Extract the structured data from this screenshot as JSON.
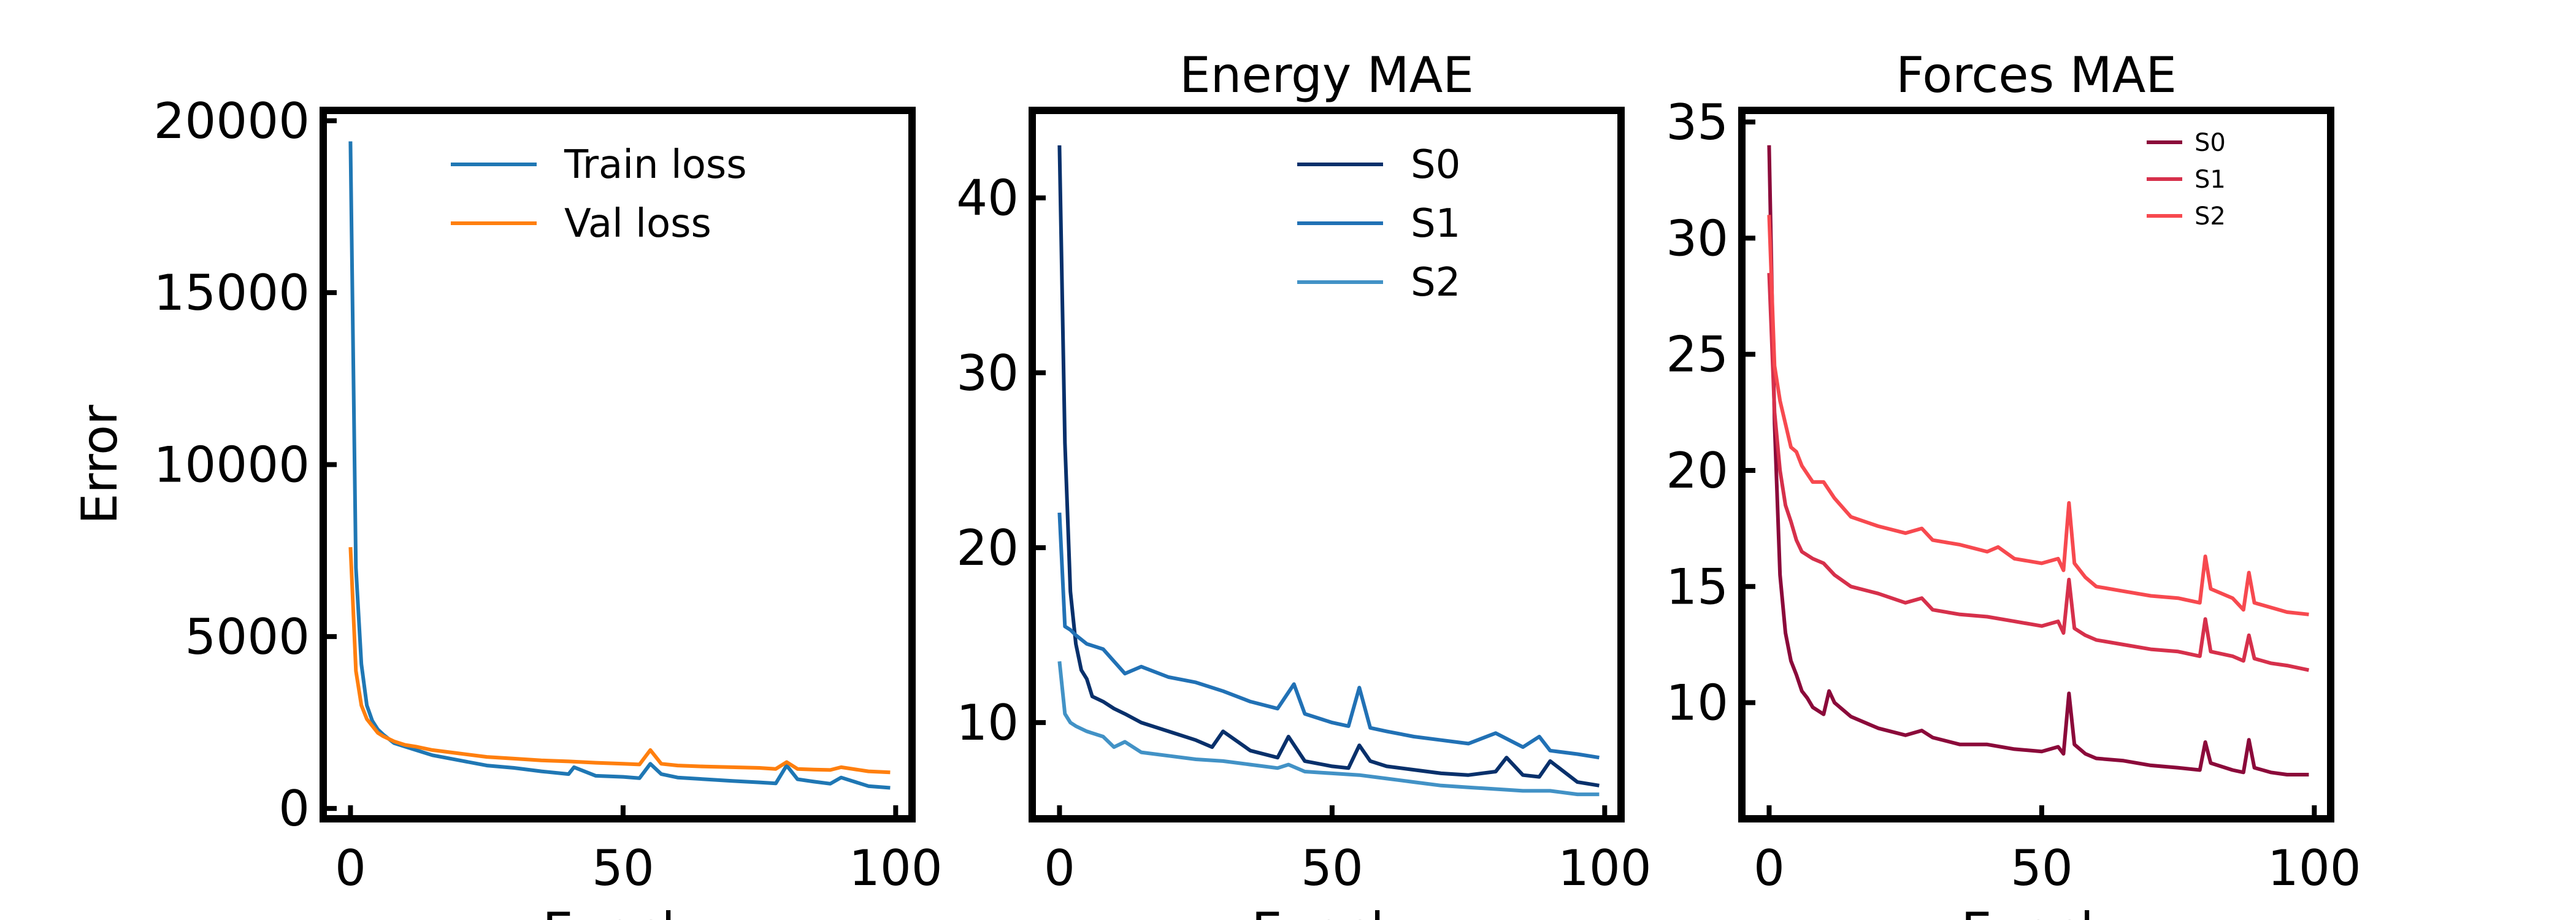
{
  "chart_data": [
    {
      "type": "line",
      "title": "",
      "xlabel": "Epoch",
      "ylabel": "Error",
      "xlim": [
        -5,
        103
      ],
      "ylim": [
        -300,
        20300
      ],
      "xticks": [
        0,
        50,
        100
      ],
      "yticks": [
        0,
        5000,
        10000,
        15000,
        20000
      ],
      "legend": "top-right",
      "series": [
        {
          "name": "Train loss",
          "color": "#1f77b4",
          "x": [
            0,
            1,
            2,
            3,
            4,
            5,
            6,
            8,
            10,
            12,
            15,
            20,
            25,
            30,
            35,
            40,
            41,
            45,
            50,
            53,
            55,
            57,
            60,
            65,
            70,
            75,
            78,
            80,
            82,
            85,
            88,
            90,
            95,
            99
          ],
          "y": [
            19400,
            7000,
            4200,
            3000,
            2550,
            2300,
            2150,
            1900,
            1800,
            1700,
            1550,
            1400,
            1250,
            1180,
            1080,
            1000,
            1200,
            950,
            920,
            880,
            1300,
            1000,
            900,
            850,
            800,
            760,
            730,
            1250,
            850,
            780,
            720,
            900,
            650,
            600
          ]
        },
        {
          "name": "Val loss",
          "color": "#ff7f0e",
          "x": [
            0,
            1,
            2,
            3,
            4,
            5,
            6,
            8,
            10,
            12,
            15,
            20,
            25,
            30,
            35,
            40,
            45,
            50,
            53,
            55,
            57,
            60,
            65,
            70,
            75,
            78,
            80,
            82,
            85,
            88,
            90,
            95,
            99
          ],
          "y": [
            7600,
            4000,
            3000,
            2600,
            2400,
            2200,
            2100,
            1950,
            1850,
            1800,
            1700,
            1600,
            1500,
            1450,
            1400,
            1370,
            1330,
            1300,
            1280,
            1700,
            1300,
            1250,
            1220,
            1200,
            1180,
            1150,
            1350,
            1150,
            1130,
            1120,
            1200,
            1080,
            1050
          ]
        }
      ]
    },
    {
      "type": "line",
      "title": "Energy MAE",
      "xlabel": "Epoch",
      "ylabel": "",
      "xlim": [
        -5,
        103
      ],
      "ylim": [
        4.5,
        45
      ],
      "xticks": [
        0,
        50,
        100
      ],
      "yticks": [
        10,
        20,
        30,
        40
      ],
      "legend": "top-right",
      "series": [
        {
          "name": "S0",
          "color": "#08306b",
          "x": [
            0,
            1,
            2,
            3,
            4,
            5,
            6,
            8,
            10,
            12,
            15,
            20,
            25,
            28,
            30,
            35,
            40,
            42,
            45,
            50,
            53,
            55,
            57,
            60,
            65,
            70,
            75,
            80,
            82,
            85,
            88,
            90,
            95,
            99
          ],
          "y": [
            43,
            26,
            17.5,
            14.5,
            13,
            12.5,
            11.5,
            11.2,
            10.8,
            10.5,
            10,
            9.5,
            9,
            8.6,
            9.5,
            8.4,
            8,
            9.2,
            7.8,
            7.5,
            7.4,
            8.7,
            7.8,
            7.5,
            7.3,
            7.1,
            7,
            7.2,
            8,
            7,
            6.9,
            7.8,
            6.6,
            6.4
          ]
        },
        {
          "name": "S1",
          "color": "#2171b5",
          "x": [
            0,
            1,
            2,
            3,
            5,
            8,
            10,
            12,
            15,
            20,
            25,
            30,
            35,
            40,
            43,
            45,
            50,
            53,
            55,
            57,
            60,
            65,
            70,
            75,
            80,
            85,
            88,
            90,
            95,
            99
          ],
          "y": [
            22,
            15.5,
            15.3,
            15,
            14.5,
            14.2,
            13.5,
            12.8,
            13.2,
            12.6,
            12.3,
            11.8,
            11.2,
            10.8,
            12.2,
            10.5,
            10,
            9.8,
            12,
            9.7,
            9.5,
            9.2,
            9,
            8.8,
            9.4,
            8.6,
            9.2,
            8.4,
            8.2,
            8
          ]
        },
        {
          "name": "S2",
          "color": "#4292c6",
          "x": [
            0,
            1,
            2,
            3,
            5,
            8,
            10,
            12,
            15,
            20,
            25,
            30,
            35,
            40,
            42,
            45,
            50,
            55,
            60,
            65,
            70,
            75,
            80,
            85,
            90,
            95,
            99
          ],
          "y": [
            13.5,
            10.5,
            10,
            9.8,
            9.5,
            9.2,
            8.6,
            8.9,
            8.3,
            8.1,
            7.9,
            7.8,
            7.6,
            7.4,
            7.6,
            7.2,
            7.1,
            7,
            6.8,
            6.6,
            6.4,
            6.3,
            6.2,
            6.1,
            6.1,
            5.9,
            5.9
          ]
        }
      ]
    },
    {
      "type": "line",
      "title": "Forces MAE",
      "xlabel": "Epoch",
      "ylabel": "",
      "xlim": [
        -5,
        103
      ],
      "ylim": [
        5,
        35.5
      ],
      "xticks": [
        0,
        50,
        100
      ],
      "yticks": [
        10,
        15,
        20,
        25,
        30,
        35
      ],
      "legend": "top-right",
      "series": [
        {
          "name": "S0",
          "color": "#8b0a3a",
          "x": [
            0,
            1,
            2,
            3,
            4,
            5,
            6,
            7,
            8,
            10,
            11,
            12,
            15,
            20,
            25,
            28,
            30,
            35,
            40,
            45,
            50,
            53,
            54,
            55,
            56,
            58,
            60,
            65,
            70,
            75,
            79,
            80,
            81,
            85,
            87,
            88,
            89,
            92,
            95,
            99
          ],
          "y": [
            34,
            22,
            15.5,
            13,
            11.8,
            11.2,
            10.5,
            10.2,
            9.8,
            9.5,
            10.5,
            10,
            9.4,
            8.9,
            8.6,
            8.8,
            8.5,
            8.2,
            8.2,
            8,
            7.9,
            8.1,
            7.8,
            10.4,
            8.2,
            7.8,
            7.6,
            7.5,
            7.3,
            7.2,
            7.1,
            8.3,
            7.4,
            7.1,
            7,
            8.4,
            7.2,
            7,
            6.9,
            6.9
          ]
        },
        {
          "name": "S1",
          "color": "#d6304b",
          "x": [
            0,
            1,
            2,
            3,
            4,
            5,
            6,
            8,
            10,
            12,
            15,
            20,
            25,
            28,
            30,
            35,
            40,
            45,
            50,
            53,
            54,
            55,
            56,
            58,
            60,
            65,
            70,
            75,
            79,
            80,
            81,
            85,
            87,
            88,
            89,
            92,
            95,
            99
          ],
          "y": [
            28.5,
            22.5,
            20,
            18.5,
            17.8,
            17,
            16.5,
            16.2,
            16,
            15.5,
            15,
            14.7,
            14.3,
            14.5,
            14,
            13.8,
            13.7,
            13.5,
            13.3,
            13.5,
            13,
            15.3,
            13.2,
            12.9,
            12.7,
            12.5,
            12.3,
            12.2,
            12,
            13.6,
            12.2,
            12,
            11.8,
            12.9,
            11.9,
            11.7,
            11.6,
            11.4
          ]
        },
        {
          "name": "S2",
          "color": "#f7494f",
          "x": [
            0,
            1,
            2,
            3,
            4,
            5,
            6,
            8,
            10,
            12,
            15,
            20,
            25,
            28,
            30,
            35,
            40,
            42,
            45,
            50,
            53,
            54,
            55,
            56,
            58,
            60,
            65,
            70,
            75,
            79,
            80,
            81,
            85,
            87,
            88,
            89,
            92,
            95,
            99
          ],
          "y": [
            31,
            24.5,
            23,
            22,
            21,
            20.8,
            20.2,
            19.5,
            19.5,
            18.8,
            18,
            17.6,
            17.3,
            17.5,
            17,
            16.8,
            16.5,
            16.7,
            16.2,
            16,
            16.2,
            15.7,
            18.6,
            16,
            15.4,
            15,
            14.8,
            14.6,
            14.5,
            14.3,
            16.3,
            14.9,
            14.5,
            14,
            15.6,
            14.3,
            14.1,
            13.9,
            13.8
          ]
        }
      ]
    }
  ]
}
